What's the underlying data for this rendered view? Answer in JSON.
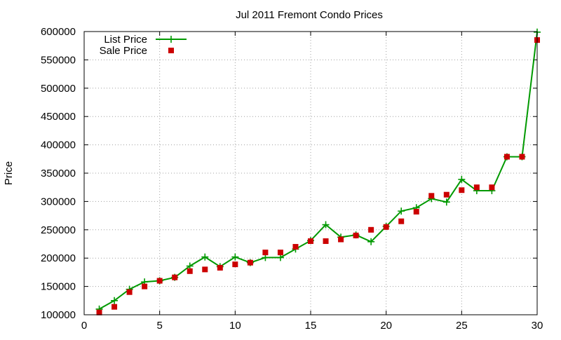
{
  "chart_data": {
    "type": "line",
    "title": "Jul 2011 Fremont Condo Prices",
    "xlabel": "",
    "ylabel": "Price",
    "xlim": [
      0,
      30
    ],
    "ylim": [
      100000,
      600000
    ],
    "x_ticks": [
      0,
      5,
      10,
      15,
      20,
      25,
      30
    ],
    "y_ticks": [
      100000,
      150000,
      200000,
      250000,
      300000,
      350000,
      400000,
      450000,
      500000,
      550000,
      600000
    ],
    "grid": true,
    "legend_position": "top-left",
    "series": [
      {
        "name": "List Price",
        "style": "line+points",
        "marker": "plus",
        "color": "#009900",
        "x": [
          1,
          2,
          3,
          4,
          5,
          6,
          7,
          8,
          9,
          10,
          11,
          12,
          13,
          14,
          15,
          16,
          17,
          18,
          19,
          20,
          21,
          22,
          23,
          24,
          25,
          26,
          27,
          28,
          29,
          30
        ],
        "values": [
          110000,
          125000,
          145000,
          158000,
          160000,
          166000,
          186000,
          202000,
          185000,
          202000,
          192000,
          201000,
          201000,
          216000,
          231000,
          259000,
          237000,
          241000,
          229000,
          256000,
          283000,
          289000,
          305000,
          299000,
          339000,
          319000,
          319000,
          379000,
          379000,
          599000
        ]
      },
      {
        "name": "Sale Price",
        "style": "points",
        "marker": "square",
        "color": "#cc0000",
        "x": [
          1,
          2,
          3,
          4,
          5,
          6,
          7,
          8,
          9,
          10,
          11,
          12,
          13,
          14,
          15,
          16,
          17,
          18,
          19,
          20,
          21,
          22,
          23,
          24,
          25,
          26,
          27,
          28,
          29,
          30
        ],
        "values": [
          104000,
          114000,
          140000,
          150000,
          160000,
          166000,
          177000,
          180000,
          183000,
          189000,
          192000,
          210000,
          210000,
          220000,
          230000,
          230000,
          233000,
          240000,
          250000,
          255000,
          265000,
          282000,
          310000,
          312000,
          320000,
          325000,
          325000,
          379000,
          379000,
          585000
        ]
      }
    ]
  }
}
